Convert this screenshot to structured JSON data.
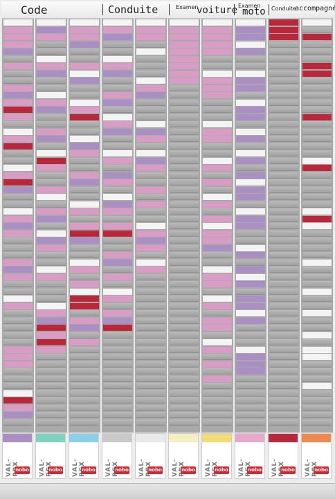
{
  "board": {
    "headers": [
      {
        "text": "Code",
        "size": "lg"
      },
      {
        "text": "Conduite",
        "size": "lg"
      },
      {
        "small": "Examen",
        "text": "voiture",
        "size": "lg"
      },
      {
        "small": "Examen",
        "text": "moto",
        "size": "lg"
      },
      {
        "small": "Conduite",
        "text": "accompagnée",
        "size": "sm"
      }
    ],
    "box_brand": "VAL-REX",
    "box_logo": "nobo",
    "colors": {
      "pink": "#d99cc4",
      "purple": "#a98fc4",
      "red": "#b8283a",
      "white": "#f4f4f4",
      "slot_gray": "#a9a9a9"
    },
    "lid_colors": [
      "#a98fc4",
      "#7fd1c0",
      "#8ccfe8",
      "#c9c9c9",
      "#e9e9e9",
      "#f3efc0",
      "#f1dc73",
      "#e6a9cc",
      "#b8283a",
      "#ee8a4d"
    ]
  }
}
